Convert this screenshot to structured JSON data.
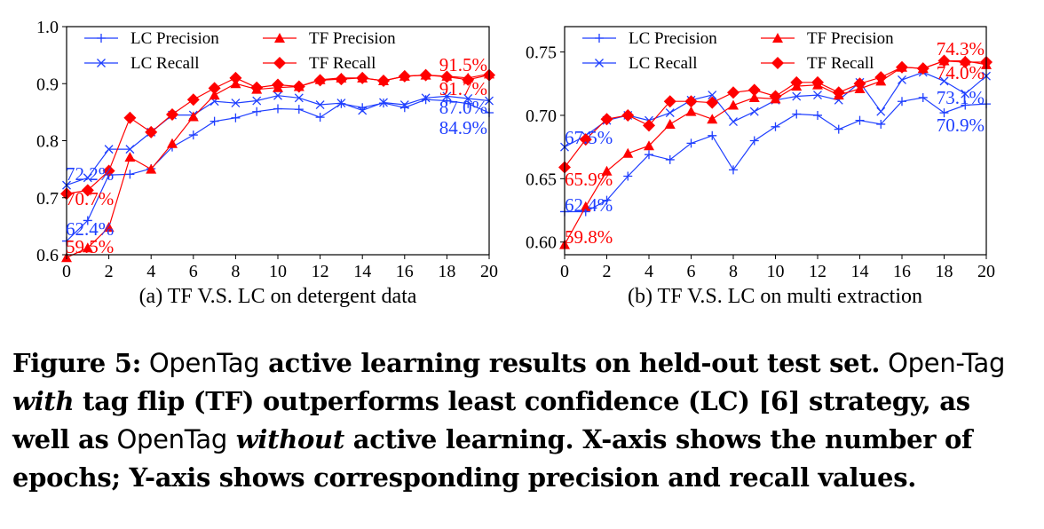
{
  "chart_data": [
    {
      "type": "line",
      "xlim": [
        0,
        20
      ],
      "ylim": [
        0.6,
        1.0
      ],
      "xticks": [
        "0",
        "2",
        "4",
        "6",
        "8",
        "10",
        "12",
        "14",
        "16",
        "18",
        "20"
      ],
      "yticks": [
        "0.6",
        "0.7",
        "0.8",
        "0.9",
        "1.0"
      ],
      "caption": "(a) TF V.S. LC on detergent data",
      "legend": "top",
      "x": [
        0,
        1,
        2,
        3,
        4,
        5,
        6,
        7,
        8,
        9,
        10,
        11,
        12,
        13,
        14,
        15,
        16,
        17,
        18,
        19,
        20
      ],
      "series": [
        {
          "name": "LC Precision",
          "color": "#1f3fff",
          "marker": "plus",
          "values": [
            0.624,
            0.66,
            0.74,
            0.741,
            0.751,
            0.789,
            0.81,
            0.834,
            0.84,
            0.851,
            0.856,
            0.855,
            0.841,
            0.865,
            0.858,
            0.866,
            0.858,
            0.872,
            0.87,
            0.865,
            0.849
          ]
        },
        {
          "name": "LC Recall",
          "color": "#1f3fff",
          "marker": "x",
          "values": [
            0.722,
            0.735,
            0.785,
            0.785,
            0.815,
            0.845,
            0.845,
            0.869,
            0.866,
            0.87,
            0.879,
            0.875,
            0.863,
            0.866,
            0.853,
            0.867,
            0.863,
            0.875,
            0.878,
            0.874,
            0.87
          ]
        },
        {
          "name": "TF Precision",
          "color": "#ff0000",
          "marker": "triangle",
          "values": [
            0.595,
            0.612,
            0.648,
            0.771,
            0.75,
            0.795,
            0.842,
            0.88,
            0.9,
            0.89,
            0.893,
            0.895,
            0.907,
            0.91,
            0.91,
            0.905,
            0.913,
            0.915,
            0.913,
            0.91,
            0.917
          ]
        },
        {
          "name": "TF Recall",
          "color": "#ff0000",
          "marker": "diamond",
          "values": [
            0.707,
            0.713,
            0.747,
            0.84,
            0.815,
            0.846,
            0.872,
            0.892,
            0.91,
            0.893,
            0.898,
            0.895,
            0.906,
            0.908,
            0.91,
            0.905,
            0.913,
            0.915,
            0.912,
            0.907,
            0.915
          ]
        }
      ],
      "annotations": [
        {
          "text": "72.2%",
          "color": "#1f3fff"
        },
        {
          "text": "70.7%",
          "color": "#ff0000"
        },
        {
          "text": "62.4%",
          "color": "#1f3fff"
        },
        {
          "text": "59.5%",
          "color": "#ff0000"
        },
        {
          "text": "91.5%",
          "color": "#ff0000"
        },
        {
          "text": "91.7%",
          "color": "#ff0000"
        },
        {
          "text": "87.0%",
          "color": "#1f3fff"
        },
        {
          "text": "84.9%",
          "color": "#1f3fff"
        }
      ]
    },
    {
      "type": "line",
      "xlim": [
        0,
        20
      ],
      "ylim": [
        0.59,
        0.77
      ],
      "xticks": [
        "0",
        "2",
        "4",
        "6",
        "8",
        "10",
        "12",
        "14",
        "16",
        "18",
        "20"
      ],
      "yticks": [
        "0.60",
        "0.65",
        "0.70",
        "0.75"
      ],
      "caption": "(b) TF V.S. LC on multi extraction",
      "legend": "top",
      "x": [
        0,
        1,
        2,
        3,
        4,
        5,
        6,
        7,
        8,
        9,
        10,
        11,
        12,
        13,
        14,
        15,
        16,
        17,
        18,
        19,
        20
      ],
      "series": [
        {
          "name": "LC Precision",
          "color": "#1f3fff",
          "marker": "plus",
          "values": [
            0.624,
            0.624,
            0.633,
            0.652,
            0.669,
            0.665,
            0.678,
            0.684,
            0.657,
            0.68,
            0.691,
            0.701,
            0.7,
            0.689,
            0.696,
            0.693,
            0.711,
            0.714,
            0.702,
            0.708,
            0.709
          ]
        },
        {
          "name": "LC Recall",
          "color": "#1f3fff",
          "marker": "x",
          "values": [
            0.675,
            0.684,
            0.696,
            0.7,
            0.696,
            0.702,
            0.712,
            0.716,
            0.695,
            0.703,
            0.712,
            0.715,
            0.716,
            0.712,
            0.726,
            0.703,
            0.728,
            0.734,
            0.727,
            0.717,
            0.731
          ]
        },
        {
          "name": "TF Precision",
          "color": "#ff0000",
          "marker": "triangle",
          "values": [
            0.598,
            0.628,
            0.656,
            0.67,
            0.676,
            0.693,
            0.703,
            0.697,
            0.708,
            0.714,
            0.713,
            0.723,
            0.724,
            0.716,
            0.721,
            0.727,
            0.738,
            0.737,
            0.743,
            0.743,
            0.74
          ]
        },
        {
          "name": "TF Recall",
          "color": "#ff0000",
          "marker": "diamond",
          "values": [
            0.659,
            0.681,
            0.697,
            0.7,
            0.692,
            0.711,
            0.711,
            0.71,
            0.718,
            0.72,
            0.715,
            0.726,
            0.726,
            0.718,
            0.725,
            0.73,
            0.738,
            0.737,
            0.743,
            0.742,
            0.742
          ]
        }
      ],
      "annotations": [
        {
          "text": "67.5%",
          "color": "#1f3fff"
        },
        {
          "text": "65.9%",
          "color": "#ff0000"
        },
        {
          "text": "62.4%",
          "color": "#1f3fff"
        },
        {
          "text": "59.8%",
          "color": "#ff0000"
        },
        {
          "text": "74.3%",
          "color": "#ff0000"
        },
        {
          "text": "74.0%",
          "color": "#ff0000"
        },
        {
          "text": "73.1%",
          "color": "#1f3fff"
        },
        {
          "text": "70.9%",
          "color": "#1f3fff"
        }
      ]
    }
  ],
  "figure_caption": {
    "label": "Figure 5:",
    "parts": [
      {
        "text": " OpenTag",
        "style": "sans"
      },
      {
        "text": " active learning results on held-out test set.",
        "style": "bold"
      },
      {
        "text": " Open-Tag",
        "style": "sans"
      },
      {
        "text": " with",
        "style": "italic"
      },
      {
        "text": " tag flip (TF) outperforms least confidence (LC) [6] strategy, as well as",
        "style": "bold"
      },
      {
        "text": " OpenTag",
        "style": "sans"
      },
      {
        "text": " without",
        "style": "italic"
      },
      {
        "text": " active learning. X-axis shows the number of epochs; Y-axis shows corresponding precision and recall values.",
        "style": "bold"
      }
    ]
  }
}
